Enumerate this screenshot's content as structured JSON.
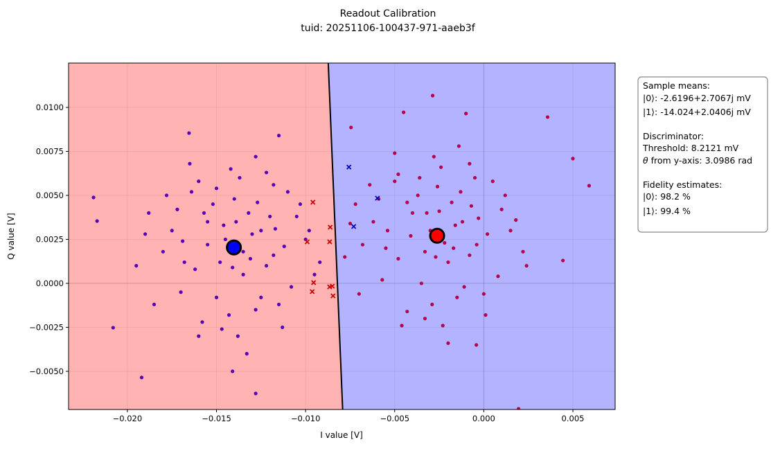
{
  "chart_data": {
    "type": "scatter",
    "title": "Readout Calibration",
    "subtitle": "tuid: 20251106-100437-971-aaeb3f",
    "xlabel": "I value [V]",
    "ylabel": "Q value [V]",
    "xlim": [
      -0.0233,
      0.00737
    ],
    "ylim": [
      -0.00717,
      0.01252
    ],
    "grid": true,
    "x_ticks": [
      "−0.020",
      "−0.015",
      "−0.010",
      "−0.005",
      "0.000",
      "0.005"
    ],
    "x_tick_values": [
      -0.02,
      -0.015,
      -0.01,
      -0.005,
      0.0,
      0.005
    ],
    "y_ticks": [
      "−0.0050",
      "−0.0025",
      "0.0000",
      "0.0025",
      "0.0050",
      "0.0075",
      "0.0100"
    ],
    "y_tick_values": [
      -0.005,
      -0.0025,
      0.0,
      0.0025,
      0.005,
      0.0075,
      0.01
    ],
    "regions": {
      "left_color": "#ffb3b3",
      "right_color": "#b3b3ff"
    },
    "decision_boundary": [
      [
        -0.00873,
        0.01252
      ],
      [
        -0.00792,
        -0.00717
      ]
    ],
    "colors": {
      "cluster_left": "#5a00b4",
      "cluster_right": "#b4004e",
      "miss_left": "#cc0000",
      "miss_right": "#0000cc",
      "mean_left": "#0000ff",
      "mean_right": "#ff0000"
    },
    "means": {
      "left": [
        -0.014024,
        0.0020406
      ],
      "right": [
        -0.0026196,
        0.0027067
      ]
    },
    "series": [
      {
        "marker": "dot",
        "color_key": "cluster_left",
        "points": [
          [
            -0.0219,
            0.00488
          ],
          [
            -0.0217,
            0.00354
          ],
          [
            -0.0192,
            -0.00535
          ],
          [
            -0.0208,
            -0.00252
          ],
          [
            -0.01654,
            0.00854
          ],
          [
            -0.0128,
            -0.00626
          ],
          [
            -0.0115,
            0.0084
          ],
          [
            -0.0141,
            -0.005
          ],
          [
            -0.014,
            0.0048
          ],
          [
            -0.0155,
            0.0035
          ],
          [
            -0.0125,
            0.003
          ],
          [
            -0.0168,
            0.0012
          ],
          [
            -0.0112,
            0.0021
          ],
          [
            -0.0135,
            0.0005
          ],
          [
            -0.015,
            -0.0008
          ],
          [
            -0.0128,
            -0.0015
          ],
          [
            -0.016,
            0.0058
          ],
          [
            -0.0118,
            0.0056
          ],
          [
            -0.0175,
            0.003
          ],
          [
            -0.0105,
            0.0038
          ],
          [
            -0.0145,
            0.0025
          ],
          [
            -0.0132,
            0.004
          ],
          [
            -0.0148,
            0.0012
          ],
          [
            -0.0122,
            0.001
          ],
          [
            -0.018,
            0.0018
          ],
          [
            -0.01,
            0.0025
          ],
          [
            -0.0158,
            -0.0022
          ],
          [
            -0.0138,
            -0.003
          ],
          [
            -0.0115,
            -0.0012
          ],
          [
            -0.017,
            -0.0005
          ],
          [
            -0.0188,
            0.004
          ],
          [
            -0.0092,
            0.0012
          ],
          [
            -0.0142,
            0.0065
          ],
          [
            -0.0128,
            0.0072
          ],
          [
            -0.0165,
            0.0068
          ],
          [
            -0.011,
            0.0052
          ],
          [
            -0.0195,
            0.001
          ],
          [
            -0.0152,
            0.0045
          ],
          [
            -0.012,
            0.0038
          ],
          [
            -0.0135,
            0.0018
          ],
          [
            -0.0143,
            -0.0018
          ],
          [
            -0.0172,
            0.0042
          ],
          [
            -0.0098,
            0.003
          ],
          [
            -0.0108,
            -0.0002
          ],
          [
            -0.0155,
            0.0022
          ],
          [
            -0.013,
            0.0028
          ],
          [
            -0.0146,
            0.0033
          ],
          [
            -0.0162,
            0.0008
          ],
          [
            -0.0125,
            -0.0008
          ],
          [
            -0.0185,
            -0.0012
          ],
          [
            -0.0137,
            0.006
          ],
          [
            -0.0118,
            0.0016
          ],
          [
            -0.015,
            0.0054
          ],
          [
            -0.0133,
            -0.004
          ],
          [
            -0.016,
            -0.003
          ],
          [
            -0.0113,
            -0.0025
          ],
          [
            -0.0178,
            0.005
          ],
          [
            -0.0103,
            0.0045
          ],
          [
            -0.0141,
            0.0009
          ],
          [
            -0.0127,
            0.0046
          ],
          [
            -0.0157,
            0.004
          ],
          [
            -0.0169,
            0.0024
          ],
          [
            -0.0122,
            0.0063
          ],
          [
            -0.019,
            0.0028
          ],
          [
            -0.0095,
            0.0005
          ],
          [
            -0.0147,
            -0.0026
          ],
          [
            -0.0131,
            0.0014
          ],
          [
            -0.0139,
            0.0035
          ],
          [
            -0.0164,
            0.0052
          ],
          [
            -0.0117,
            0.0031
          ]
        ]
      },
      {
        "marker": "dot",
        "color_key": "cluster_right",
        "points": [
          [
            -0.00287,
            0.01067
          ],
          [
            -0.0045,
            0.00972
          ],
          [
            -0.001,
            0.00965
          ],
          [
            0.00358,
            0.00945
          ],
          [
            0.005,
            0.00709
          ],
          [
            0.00591,
            0.00555
          ],
          [
            0.00444,
            0.0013
          ],
          [
            -0.00042,
            -0.0035
          ],
          [
            0.00195,
            -0.00713
          ],
          [
            -0.00745,
            0.00886
          ],
          [
            -0.0026,
            0.0055
          ],
          [
            -0.004,
            0.004
          ],
          [
            -0.0012,
            0.0035
          ],
          [
            -0.0055,
            0.002
          ],
          [
            0.0002,
            0.0028
          ],
          [
            -0.002,
            0.0012
          ],
          [
            -0.0035,
            0.0
          ],
          [
            -0.0015,
            -0.0008
          ],
          [
            -0.0048,
            0.0062
          ],
          [
            -0.0005,
            0.006
          ],
          [
            -0.0062,
            0.0035
          ],
          [
            0.001,
            0.0042
          ],
          [
            -0.003,
            0.003
          ],
          [
            -0.0018,
            0.0046
          ],
          [
            -0.0033,
            0.0018
          ],
          [
            -0.0008,
            0.0016
          ],
          [
            -0.0068,
            0.0022
          ],
          [
            0.0015,
            0.003
          ],
          [
            -0.0043,
            -0.0016
          ],
          [
            -0.0023,
            -0.0024
          ],
          [
            0.0,
            -0.0006
          ],
          [
            -0.0057,
            0.0002
          ],
          [
            -0.0072,
            0.0045
          ],
          [
            0.0022,
            0.0018
          ],
          [
            -0.0028,
            0.0072
          ],
          [
            -0.0014,
            0.0078
          ],
          [
            -0.005,
            0.0074
          ],
          [
            0.0005,
            0.0058
          ],
          [
            -0.0078,
            0.0015
          ],
          [
            -0.0037,
            0.005
          ],
          [
            -0.0007,
            0.0044
          ],
          [
            -0.0022,
            0.0023
          ],
          [
            -0.0029,
            -0.0012
          ],
          [
            -0.0059,
            0.0048
          ],
          [
            0.0018,
            0.0036
          ],
          [
            0.0008,
            0.0004
          ],
          [
            -0.0041,
            0.0027
          ],
          [
            -0.0016,
            0.0033
          ],
          [
            -0.0032,
            0.004
          ],
          [
            -0.0048,
            0.0014
          ],
          [
            -0.0011,
            -0.0002
          ],
          [
            -0.007,
            -0.0006
          ],
          [
            -0.0024,
            0.0066
          ],
          [
            -0.0004,
            0.0022
          ],
          [
            -0.0036,
            0.006
          ],
          [
            -0.002,
            -0.0034
          ],
          [
            -0.0046,
            -0.0024
          ],
          [
            0.0001,
            -0.0018
          ],
          [
            -0.0064,
            0.0056
          ],
          [
            0.0012,
            0.005
          ],
          [
            -0.0027,
            0.0015
          ],
          [
            -0.0013,
            0.0052
          ],
          [
            -0.0043,
            0.0046
          ],
          [
            -0.0054,
            0.003
          ],
          [
            -0.0008,
            0.0068
          ],
          [
            -0.0075,
            0.0034
          ],
          [
            0.0024,
            0.001
          ],
          [
            -0.0033,
            -0.002
          ],
          [
            -0.0017,
            0.002
          ],
          [
            -0.0025,
            0.0041
          ],
          [
            -0.005,
            0.0058
          ],
          [
            -0.0003,
            0.0037
          ]
        ]
      },
      {
        "marker": "x",
        "color_key": "miss_left",
        "points": [
          [
            -0.00959,
            0.00461
          ],
          [
            -0.00862,
            0.00319
          ],
          [
            -0.00991,
            0.00236
          ],
          [
            -0.00865,
            0.00236
          ],
          [
            -0.00955,
            4e-05
          ],
          [
            -0.00963,
            -0.00047
          ],
          [
            -0.00865,
            -0.0002
          ],
          [
            -0.0085,
            -0.00016
          ],
          [
            -0.00846,
            -0.00071
          ]
        ]
      },
      {
        "marker": "x",
        "color_key": "miss_right",
        "points": [
          [
            -0.00757,
            0.00661
          ],
          [
            -0.00597,
            0.00484
          ],
          [
            -0.0073,
            0.00323
          ]
        ]
      }
    ],
    "info_box": {
      "means_header": "Sample means:",
      "mean0": "|0⟩: -2.6196+2.7067j mV",
      "mean1": "|1⟩: -14.024+2.0406j mV",
      "disc_header": "Discriminator:",
      "threshold": "Threshold: 8.2121 mV",
      "theta_symbol": "θ",
      "theta": " from y-axis: 3.0986 rad",
      "fid_header": "Fidelity estimates:",
      "fid0": "|0⟩: 98.2 %",
      "fid1": "|1⟩: 99.4 %"
    }
  }
}
